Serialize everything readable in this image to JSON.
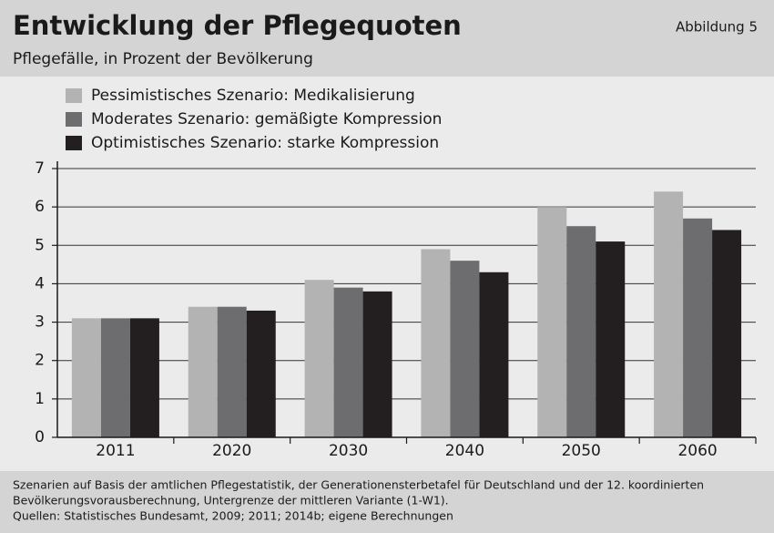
{
  "chart_data": {
    "type": "bar",
    "title": "Entwicklung der Pflegequoten",
    "subtitle": "Pflegefälle, in Prozent der Bevölkerung",
    "figure_label": "Abbildung 5",
    "categories": [
      "2011",
      "2020",
      "2030",
      "2040",
      "2050",
      "2060"
    ],
    "series": [
      {
        "name": "Pessimistisches Szenario: Medikalisierung",
        "color": "#b3b3b3",
        "values": [
          3.1,
          3.4,
          4.1,
          4.9,
          6.0,
          6.4
        ]
      },
      {
        "name": "Moderates Szenario: gemäßigte Kompression",
        "color": "#6d6d70",
        "values": [
          3.1,
          3.4,
          3.9,
          4.6,
          5.5,
          5.7
        ]
      },
      {
        "name": "Optimistisches Szenario: starke Kompression",
        "color": "#231f20",
        "values": [
          3.1,
          3.3,
          3.8,
          4.3,
          5.1,
          5.4
        ]
      }
    ],
    "ylim": [
      0,
      7
    ],
    "yticks": [
      0,
      1,
      2,
      3,
      4,
      5,
      6,
      7
    ],
    "grid": true,
    "legend": "top-left",
    "notes": [
      "Szenarien auf Basis der amtlichen Pflegestatistik, der Generationensterbetafel für Deutschland und der 12. koordinierten",
      "Bevölkerungsvorausberechnung, Untergrenze der mittleren Variante (1-W1).",
      "Quellen: Statistisches Bundesamt, 2009; 2011; 2014b; eigene Berechnungen"
    ]
  }
}
